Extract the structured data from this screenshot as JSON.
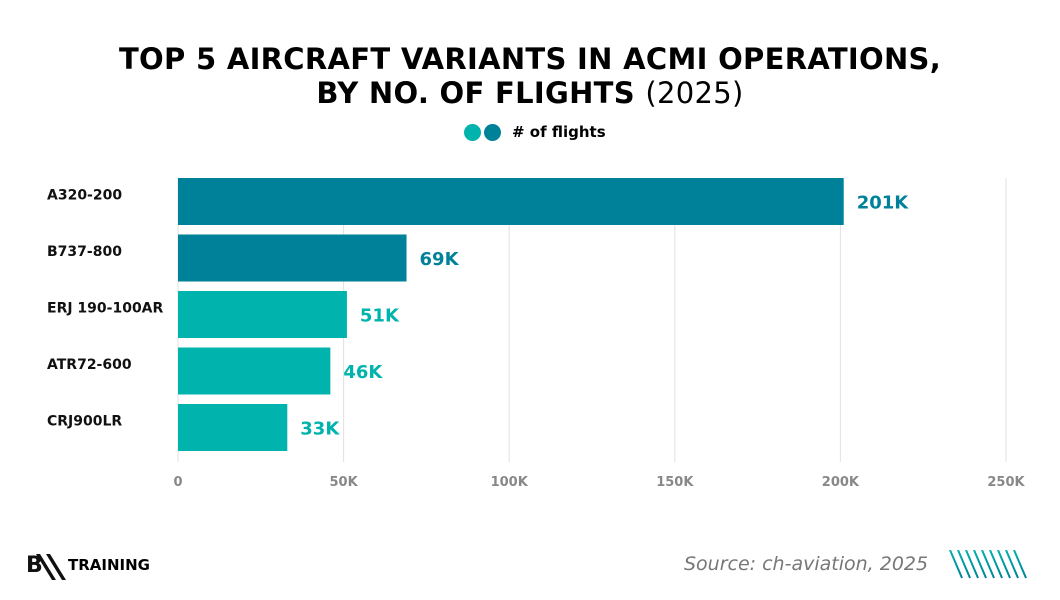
{
  "chart_data": {
    "type": "bar",
    "orientation": "horizontal",
    "title_line1": "TOP 5 AIRCRAFT VARIANTS IN ACMI OPERATIONS,",
    "title_line2": "BY NO. OF FLIGHTS",
    "title_year": "(2025)",
    "legend": "# of flights",
    "categories": [
      "A320-200",
      "B737-800",
      "ERJ 190-100AR",
      "ATR72-600",
      "CRJ900LR"
    ],
    "values": [
      201,
      69,
      51,
      46,
      33
    ],
    "data_labels": [
      "201K",
      "69K",
      "51K",
      "46K",
      "33K"
    ],
    "colors": [
      "#00819a",
      "#00819a",
      "#00b3ad",
      "#00b3ad",
      "#00b3ad"
    ],
    "xlim": [
      0,
      250
    ],
    "xticks": [
      0,
      50,
      100,
      150,
      200,
      250
    ],
    "xtick_labels": [
      "0",
      "50K",
      "100K",
      "150K",
      "200K",
      "250K"
    ],
    "grid": true,
    "legend_position": "top"
  },
  "footer": {
    "source": "Source: ch-aviation, 2025",
    "logo_text": "TRAINING",
    "logo_mark": "BAA"
  },
  "colors": {
    "dark": "#00819a",
    "light": "#00b3ad"
  }
}
